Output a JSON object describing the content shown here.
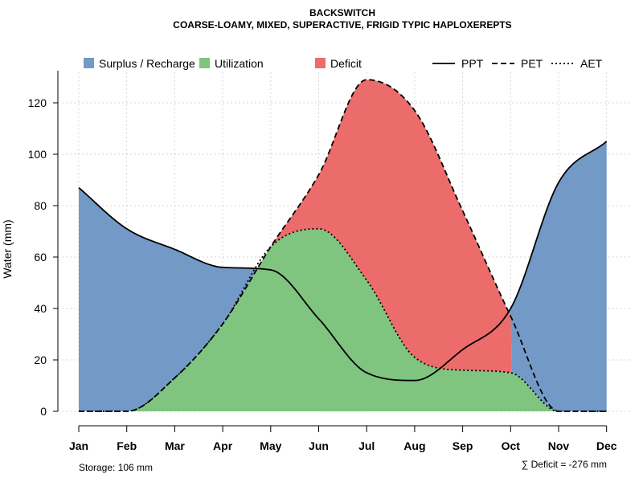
{
  "chart_data": {
    "type": "area",
    "title": "BACKSWITCH",
    "subtitle": "COARSE-LOAMY, MIXED, SUPERACTIVE, FRIGID TYPIC HAPLOXEREPTS",
    "ylabel": "Water (mm)",
    "xlabel": "",
    "ylim": [
      0,
      130
    ],
    "yticks": [
      0,
      20,
      40,
      60,
      80,
      100,
      120
    ],
    "categories": [
      "Jan",
      "Feb",
      "Mar",
      "Apr",
      "May",
      "Jun",
      "Jul",
      "Aug",
      "Sep",
      "Oct",
      "Nov",
      "Dec"
    ],
    "grid": true,
    "legend": {
      "position": "top",
      "fills": [
        {
          "label": "Surplus / Recharge",
          "color": "#7399C6"
        },
        {
          "label": "Utilization",
          "color": "#7FC47F"
        },
        {
          "label": "Deficit",
          "color": "#EC6B6B"
        }
      ],
      "lines": [
        {
          "label": "PPT",
          "dash": "solid"
        },
        {
          "label": "PET",
          "dash": "dashed"
        },
        {
          "label": "AET",
          "dash": "dotted"
        }
      ]
    },
    "series": [
      {
        "name": "PPT",
        "values": [
          87,
          71,
          63,
          56,
          55,
          36,
          15,
          12,
          24,
          40,
          89,
          105
        ]
      },
      {
        "name": "PET",
        "values": [
          0,
          0,
          13,
          34,
          64,
          92,
          129,
          117,
          78,
          37,
          0,
          0
        ]
      },
      {
        "name": "AET",
        "values": [
          0,
          0,
          13,
          34,
          64,
          71,
          51,
          21,
          16,
          15,
          0,
          0
        ]
      }
    ],
    "storage_label": "Storage: 106 mm",
    "deficit_label": "∑ Deficit = -276 mm"
  }
}
